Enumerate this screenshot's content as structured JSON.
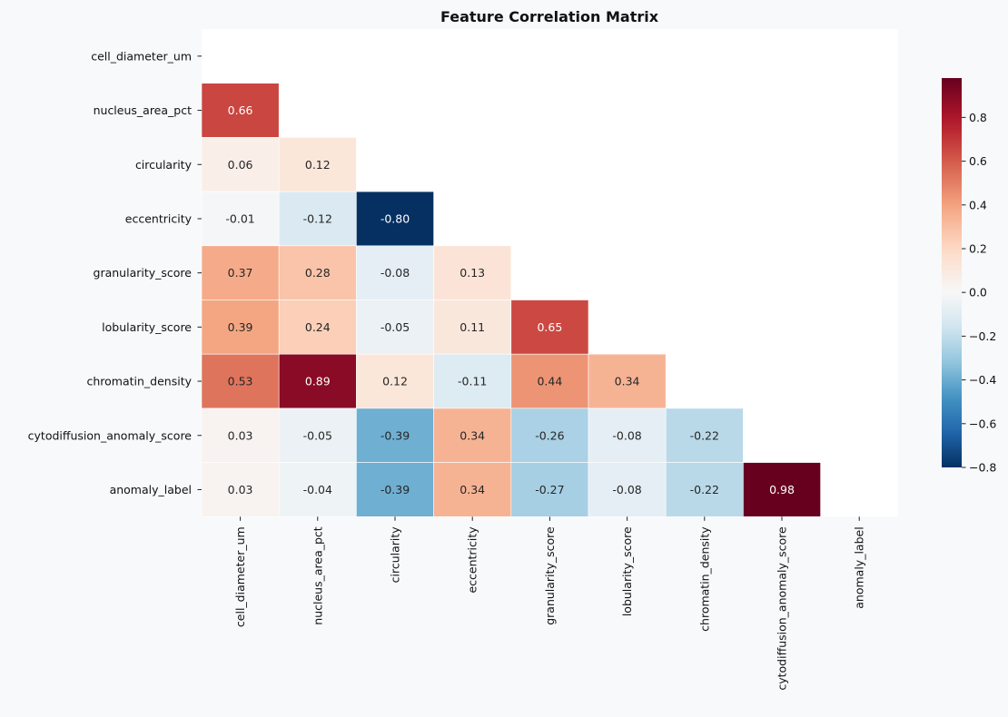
{
  "chart_data": {
    "type": "heatmap",
    "title": "Feature Correlation Matrix",
    "xlabel": "",
    "ylabel": "",
    "labels": [
      "cell_diameter_um",
      "nucleus_area_pct",
      "circularity",
      "eccentricity",
      "granularity_score",
      "lobularity_score",
      "chromatin_density",
      "cytodiffusion_anomaly_score",
      "anomaly_label"
    ],
    "mask": "upper-triangle-including-diagonal",
    "lower_triangle": [
      [],
      [
        0.66
      ],
      [
        0.06,
        0.12
      ],
      [
        -0.01,
        -0.12,
        -0.8
      ],
      [
        0.37,
        0.28,
        -0.08,
        0.13
      ],
      [
        0.39,
        0.24,
        -0.05,
        0.11,
        0.65
      ],
      [
        0.53,
        0.89,
        0.12,
        -0.11,
        0.44,
        0.34
      ],
      [
        0.03,
        -0.05,
        -0.39,
        0.34,
        -0.26,
        -0.08,
        -0.22
      ],
      [
        0.03,
        -0.04,
        -0.39,
        0.34,
        -0.27,
        -0.08,
        -0.22,
        0.98
      ]
    ],
    "value_format": "0.00",
    "colormap": "RdBu_r",
    "colorbar": {
      "vmin": -0.8,
      "vmax": 0.98,
      "ticks": [
        -0.8,
        -0.6,
        -0.4,
        -0.2,
        0.0,
        0.2,
        0.4,
        0.6,
        0.8
      ],
      "tick_labels": [
        "−0.8",
        "−0.6",
        "−0.4",
        "−0.2",
        "0.0",
        "0.2",
        "0.4",
        "0.6",
        "0.8"
      ],
      "position": "right"
    },
    "colors": {
      "figure_background": "#f7f9fb",
      "plot_background": "#ffffff",
      "cell_border": "#ffffff",
      "text_dark": "#262626",
      "text_light": "#ffffff"
    }
  }
}
